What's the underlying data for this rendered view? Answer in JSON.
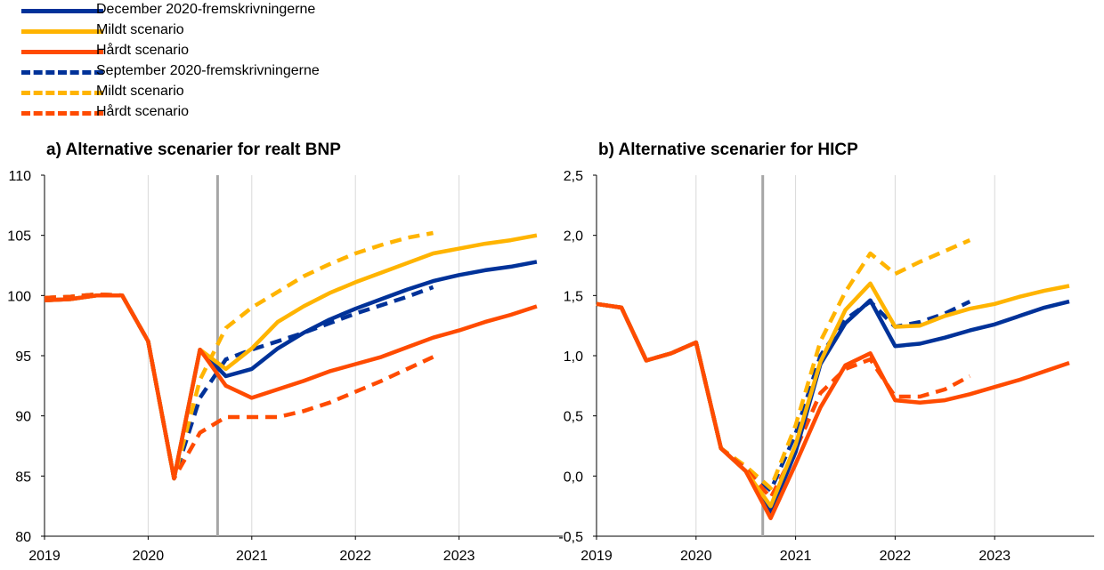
{
  "legend": [
    {
      "label": "December 2020-fremskrivningerne",
      "color": "#003299",
      "style": "solid"
    },
    {
      "label": "Mildt scenario",
      "color": "#FFB400",
      "style": "solid"
    },
    {
      "label": "Hårdt scenario",
      "color": "#FF4B00",
      "style": "solid"
    },
    {
      "label": "September 2020-fremskrivningerne",
      "color": "#003299",
      "style": "dash"
    },
    {
      "label": "Mildt scenario",
      "color": "#FFB400",
      "style": "dash"
    },
    {
      "label": "Hårdt scenario",
      "color": "#FF4B00",
      "style": "dash"
    }
  ],
  "chart_data": [
    {
      "type": "line",
      "title": "a) Alternative scenarier for realt BNP",
      "xlabel": "",
      "ylabel": "",
      "xlim": [
        2019,
        2024
      ],
      "ylim": [
        80,
        110
      ],
      "yticks": [
        80,
        85,
        90,
        95,
        100,
        105,
        110
      ],
      "ytick_labels": [
        "80",
        "85",
        "90",
        "95",
        "100",
        "105",
        "110"
      ],
      "xticks": [
        2019,
        2020,
        2021,
        2022,
        2023
      ],
      "xtick_labels": [
        "2019",
        "2020",
        "2021",
        "2022",
        "2023"
      ],
      "vline": 2020.67,
      "series": [
        {
          "name": "December 2020-fremskrivningerne",
          "color": "#003299",
          "style": "solid",
          "x": [
            2019,
            2019.25,
            2019.5,
            2019.75,
            2020,
            2020.25,
            2020.5,
            2020.75,
            2021,
            2021.25,
            2021.5,
            2021.75,
            2022,
            2022.25,
            2022.5,
            2022.75,
            2023,
            2023.25,
            2023.5,
            2023.75
          ],
          "y": [
            99.6,
            99.7,
            100.0,
            100.0,
            96.2,
            84.8,
            95.5,
            93.3,
            93.9,
            95.6,
            96.9,
            98.0,
            98.9,
            99.7,
            100.5,
            101.2,
            101.7,
            102.1,
            102.4,
            102.8
          ]
        },
        {
          "name": "Mildt scenario",
          "color": "#FFB400",
          "style": "solid",
          "x": [
            2019,
            2019.25,
            2019.5,
            2019.75,
            2020,
            2020.25,
            2020.5,
            2020.75,
            2021,
            2021.25,
            2021.5,
            2021.75,
            2022,
            2022.25,
            2022.5,
            2022.75,
            2023,
            2023.25,
            2023.5,
            2023.75
          ],
          "y": [
            99.6,
            99.7,
            100.0,
            100.0,
            96.2,
            84.8,
            95.5,
            93.9,
            95.6,
            97.8,
            99.1,
            100.2,
            101.1,
            101.9,
            102.7,
            103.5,
            103.9,
            104.3,
            104.6,
            105.0
          ]
        },
        {
          "name": "Hårdt scenario",
          "color": "#FF4B00",
          "style": "solid",
          "x": [
            2019,
            2019.25,
            2019.5,
            2019.75,
            2020,
            2020.25,
            2020.5,
            2020.75,
            2021,
            2021.25,
            2021.5,
            2021.75,
            2022,
            2022.25,
            2022.5,
            2022.75,
            2023,
            2023.25,
            2023.5,
            2023.75
          ],
          "y": [
            99.6,
            99.7,
            100.0,
            100.0,
            96.2,
            84.8,
            95.5,
            92.5,
            91.5,
            92.2,
            92.9,
            93.7,
            94.3,
            94.9,
            95.7,
            96.5,
            97.1,
            97.8,
            98.4,
            99.1
          ]
        },
        {
          "name": "September 2020-fremskrivningerne",
          "color": "#003299",
          "style": "dash",
          "x": [
            2019,
            2019.25,
            2019.5,
            2019.75,
            2020,
            2020.25,
            2020.5,
            2020.75,
            2021,
            2021.25,
            2021.5,
            2021.75,
            2022,
            2022.25,
            2022.5,
            2022.75
          ],
          "y": [
            99.8,
            99.9,
            100.1,
            100.0,
            96.2,
            84.8,
            91.5,
            94.7,
            95.5,
            96.2,
            96.9,
            97.7,
            98.5,
            99.2,
            99.9,
            100.7
          ]
        },
        {
          "name": "Mildt scenario",
          "color": "#FFB400",
          "style": "dash",
          "x": [
            2019,
            2019.25,
            2019.5,
            2019.75,
            2020,
            2020.25,
            2020.5,
            2020.75,
            2021,
            2021.25,
            2021.5,
            2021.75,
            2022,
            2022.25,
            2022.5,
            2022.75
          ],
          "y": [
            99.8,
            99.9,
            100.1,
            100.0,
            96.2,
            84.8,
            93.0,
            97.3,
            99.0,
            100.3,
            101.6,
            102.6,
            103.5,
            104.2,
            104.8,
            105.2
          ]
        },
        {
          "name": "Hårdt scenario",
          "color": "#FF4B00",
          "style": "dash",
          "x": [
            2019,
            2019.25,
            2019.5,
            2019.75,
            2020,
            2020.25,
            2020.5,
            2020.75,
            2021,
            2021.25,
            2021.5,
            2021.75,
            2022,
            2022.25,
            2022.5,
            2022.75
          ],
          "y": [
            99.8,
            99.9,
            100.1,
            100.0,
            96.2,
            84.8,
            88.6,
            89.9,
            89.9,
            89.9,
            90.4,
            91.1,
            92.0,
            92.9,
            93.9,
            94.9
          ]
        }
      ]
    },
    {
      "type": "line",
      "title": "b) Alternative scenarier for HICP",
      "xlabel": "",
      "ylabel": "",
      "xlim": [
        2019,
        2024
      ],
      "ylim": [
        -0.5,
        2.5
      ],
      "yticks": [
        -0.5,
        0.0,
        0.5,
        1.0,
        1.5,
        2.0,
        2.5
      ],
      "ytick_labels": [
        "-0,5",
        "0,0",
        "0,5",
        "1,0",
        "1,5",
        "2,0",
        "2,5"
      ],
      "xticks": [
        2019,
        2020,
        2021,
        2022,
        2023
      ],
      "xtick_labels": [
        "2019",
        "2020",
        "2021",
        "2022",
        "2023"
      ],
      "vline": 2020.67,
      "series": [
        {
          "name": "December 2020-fremskrivningerne",
          "color": "#003299",
          "style": "solid",
          "x": [
            2019,
            2019.25,
            2019.5,
            2019.75,
            2020,
            2020.25,
            2020.5,
            2020.75,
            2021,
            2021.25,
            2021.5,
            2021.75,
            2022,
            2022.25,
            2022.5,
            2022.75,
            2023,
            2023.25,
            2023.5,
            2023.75
          ],
          "y": [
            1.43,
            1.4,
            0.96,
            1.02,
            1.11,
            0.23,
            0.04,
            -0.3,
            0.2,
            0.93,
            1.27,
            1.46,
            1.08,
            1.1,
            1.15,
            1.21,
            1.26,
            1.33,
            1.4,
            1.45
          ]
        },
        {
          "name": "Mildt scenario",
          "color": "#FFB400",
          "style": "solid",
          "x": [
            2019,
            2019.25,
            2019.5,
            2019.75,
            2020,
            2020.25,
            2020.5,
            2020.75,
            2021,
            2021.25,
            2021.5,
            2021.75,
            2022,
            2022.25,
            2022.5,
            2022.75,
            2023,
            2023.25,
            2023.5,
            2023.75
          ],
          "y": [
            1.43,
            1.4,
            0.96,
            1.02,
            1.11,
            0.23,
            0.04,
            -0.25,
            0.26,
            0.95,
            1.38,
            1.6,
            1.24,
            1.25,
            1.33,
            1.39,
            1.43,
            1.49,
            1.54,
            1.58
          ]
        },
        {
          "name": "Hårdt scenario",
          "color": "#FF4B00",
          "style": "solid",
          "x": [
            2019,
            2019.25,
            2019.5,
            2019.75,
            2020,
            2020.25,
            2020.5,
            2020.75,
            2021,
            2021.25,
            2021.5,
            2021.75,
            2022,
            2022.25,
            2022.5,
            2022.75,
            2023,
            2023.25,
            2023.5,
            2023.75
          ],
          "y": [
            1.43,
            1.4,
            0.96,
            1.02,
            1.11,
            0.23,
            0.04,
            -0.35,
            0.1,
            0.57,
            0.92,
            1.02,
            0.63,
            0.61,
            0.63,
            0.68,
            0.74,
            0.8,
            0.87,
            0.94
          ]
        },
        {
          "name": "September 2020-fremskrivningerne",
          "color": "#003299",
          "style": "dash",
          "x": [
            2019,
            2019.25,
            2019.5,
            2019.75,
            2020,
            2020.25,
            2020.5,
            2020.75,
            2021,
            2021.25,
            2021.5,
            2021.75,
            2022,
            2022.25,
            2022.5,
            2022.75
          ],
          "y": [
            1.43,
            1.4,
            0.96,
            1.02,
            1.11,
            0.23,
            0.06,
            -0.12,
            0.35,
            1.0,
            1.3,
            1.45,
            1.24,
            1.28,
            1.35,
            1.45
          ]
        },
        {
          "name": "Mildt scenario",
          "color": "#FFB400",
          "style": "dash",
          "x": [
            2019,
            2019.25,
            2019.5,
            2019.75,
            2020,
            2020.25,
            2020.5,
            2020.75,
            2021,
            2021.25,
            2021.5,
            2021.75,
            2022,
            2022.25,
            2022.5,
            2022.75
          ],
          "y": [
            1.43,
            1.4,
            0.96,
            1.02,
            1.11,
            0.23,
            0.08,
            -0.1,
            0.42,
            1.12,
            1.53,
            1.85,
            1.68,
            1.78,
            1.87,
            1.96
          ]
        },
        {
          "name": "Hårdt scenario",
          "color": "#FF4B00",
          "style": "dash",
          "x": [
            2019,
            2019.25,
            2019.5,
            2019.75,
            2020,
            2020.25,
            2020.5,
            2020.75,
            2021,
            2021.25,
            2021.5,
            2021.75,
            2022,
            2022.25,
            2022.5,
            2022.75
          ],
          "y": [
            1.43,
            1.4,
            0.96,
            1.02,
            1.11,
            0.23,
            0.06,
            -0.18,
            0.22,
            0.69,
            0.89,
            0.97,
            0.66,
            0.66,
            0.72,
            0.83
          ]
        }
      ]
    }
  ]
}
